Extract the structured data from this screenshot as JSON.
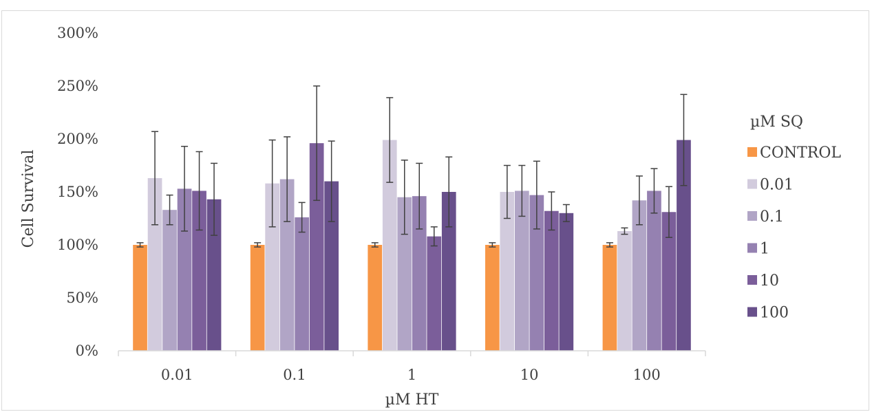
{
  "chart_data": {
    "type": "bar",
    "title": "",
    "xlabel": "µM HT",
    "ylabel": "Cell Survival",
    "ylim": [
      0,
      300
    ],
    "y_ticks": [
      0,
      50,
      100,
      150,
      200,
      250,
      300
    ],
    "y_tick_labels": [
      "0%",
      "50%",
      "100%",
      "150%",
      "200%",
      "250%",
      "300%"
    ],
    "categories": [
      "0.01",
      "0.1",
      "1",
      "10",
      "100"
    ],
    "legend_title": "µM SQ",
    "legend_position": "right",
    "grid": false,
    "error_bars": true,
    "series": [
      {
        "name": "CONTROL",
        "color": "#f79646",
        "values": [
          100,
          100,
          100,
          100,
          100
        ],
        "errors": [
          2,
          2,
          2,
          2,
          2
        ]
      },
      {
        "name": "0.01",
        "color": "#d2cbdd",
        "values": [
          163,
          158,
          199,
          150,
          113
        ],
        "errors": [
          44,
          41,
          40,
          25,
          3
        ]
      },
      {
        "name": "0.1",
        "color": "#b1a5c6",
        "values": [
          133,
          162,
          145,
          151,
          142
        ],
        "errors": [
          14,
          40,
          35,
          24,
          23
        ]
      },
      {
        "name": "1",
        "color": "#9581b1",
        "values": [
          153,
          126,
          146,
          147,
          151
        ],
        "errors": [
          40,
          14,
          31,
          32,
          21
        ]
      },
      {
        "name": "10",
        "color": "#7b5e9a",
        "values": [
          151,
          196,
          108,
          132,
          131
        ],
        "errors": [
          37,
          54,
          9,
          18,
          24
        ]
      },
      {
        "name": "100",
        "color": "#68508b",
        "values": [
          143,
          160,
          150,
          130,
          199
        ],
        "errors": [
          34,
          38,
          33,
          8,
          43
        ]
      }
    ]
  }
}
